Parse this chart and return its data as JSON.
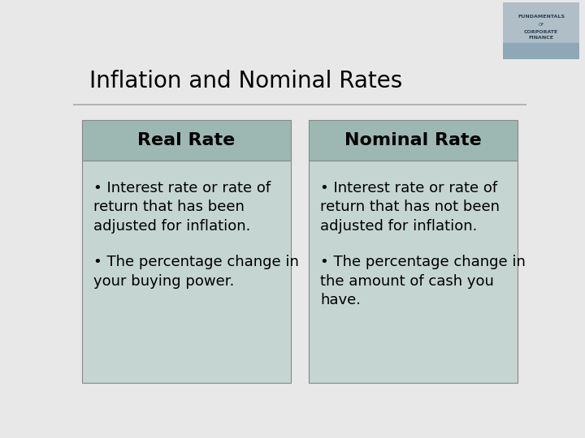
{
  "title": "Inflation and Nominal Rates",
  "title_fontsize": 20,
  "background_color": "#e8e8e8",
  "slide_bg": "#e8e8e8",
  "header_bg": "#a8bfb8",
  "box_bg": "#c8d8d4",
  "box_border": "#999999",
  "title_color": "#000000",
  "left_header": "Real Rate",
  "right_header": "Nominal Rate",
  "left_bullets": [
    "Interest rate or rate of return that has been adjusted for inflation.",
    "The percentage change in your buying power."
  ],
  "right_bullets": [
    "Interest rate or rate of return that has not been adjusted for inflation.",
    "The percentage change in the amount of cash you have."
  ],
  "header_fontsize": 16,
  "bullet_fontsize": 13
}
